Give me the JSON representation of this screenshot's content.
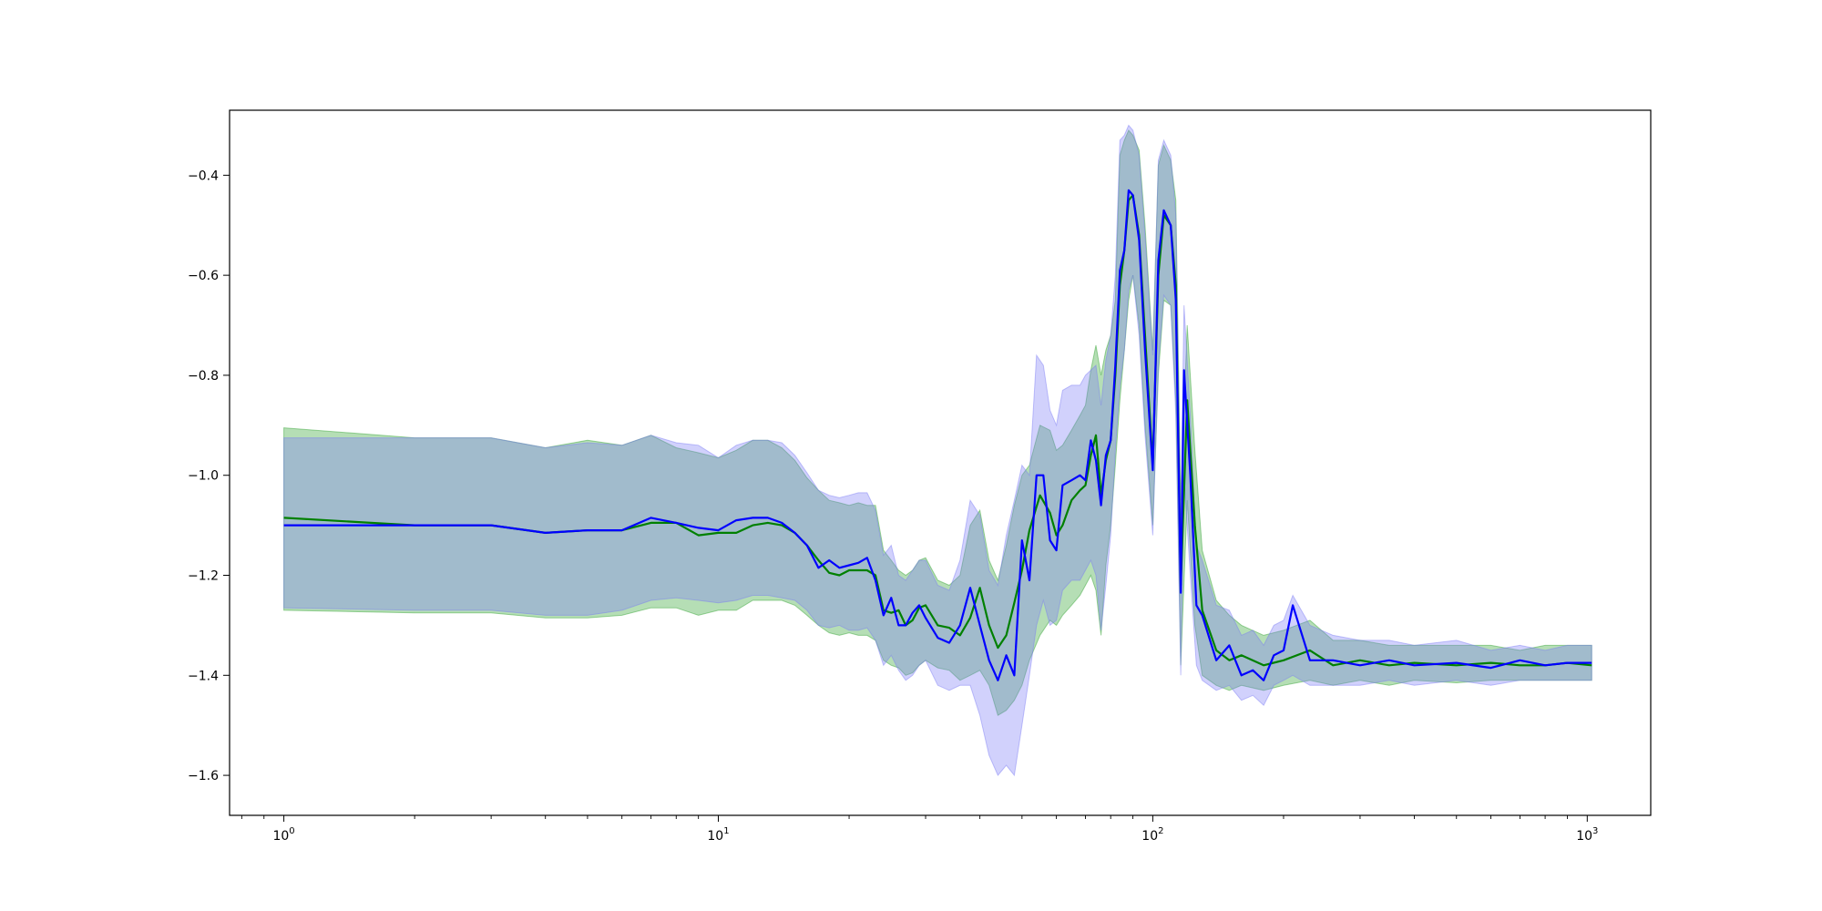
{
  "chart_data": {
    "type": "line",
    "title": "",
    "xlabel": "",
    "ylabel": "",
    "xscale": "log",
    "xlim": [
      0.75,
      1400
    ],
    "ylim": [
      -1.68,
      -0.27
    ],
    "grid": false,
    "legend": "none",
    "x_ticks": [
      {
        "value": 1,
        "base": "10",
        "exp": "0"
      },
      {
        "value": 10,
        "base": "10",
        "exp": "1"
      },
      {
        "value": 100,
        "base": "10",
        "exp": "2"
      },
      {
        "value": 1000,
        "base": "10",
        "exp": "3"
      }
    ],
    "y_ticks": [
      {
        "value": -1.6,
        "label": "−1.6"
      },
      {
        "value": -1.4,
        "label": "−1.4"
      },
      {
        "value": -1.2,
        "label": "−1.2"
      },
      {
        "value": -1.0,
        "label": "−1.0"
      },
      {
        "value": -0.8,
        "label": "−0.8"
      },
      {
        "value": -0.6,
        "label": "−0.6"
      },
      {
        "value": -0.4,
        "label": "−0.4"
      }
    ],
    "series": [
      {
        "color": "#008000",
        "band_color": "#2ca02c",
        "points": [
          [
            1,
            -1.085,
            -0.905,
            -1.27
          ],
          [
            2,
            -1.1,
            -0.925,
            -1.275
          ],
          [
            3,
            -1.1,
            -0.925,
            -1.275
          ],
          [
            4,
            -1.115,
            -0.945,
            -1.285
          ],
          [
            5,
            -1.11,
            -0.93,
            -1.285
          ],
          [
            6,
            -1.11,
            -0.94,
            -1.28
          ],
          [
            7,
            -1.095,
            -0.92,
            -1.265
          ],
          [
            8,
            -1.095,
            -0.945,
            -1.265
          ],
          [
            9,
            -1.12,
            -0.955,
            -1.28
          ],
          [
            10,
            -1.115,
            -0.965,
            -1.27
          ],
          [
            11,
            -1.115,
            -0.95,
            -1.27
          ],
          [
            12,
            -1.1,
            -0.93,
            -1.25
          ],
          [
            13,
            -1.095,
            -0.93,
            -1.25
          ],
          [
            14,
            -1.1,
            -0.945,
            -1.25
          ],
          [
            15,
            -1.115,
            -0.97,
            -1.26
          ],
          [
            16,
            -1.14,
            -1.005,
            -1.28
          ],
          [
            17,
            -1.17,
            -1.03,
            -1.3
          ],
          [
            18,
            -1.195,
            -1.05,
            -1.315
          ],
          [
            19,
            -1.2,
            -1.055,
            -1.32
          ],
          [
            20,
            -1.19,
            -1.06,
            -1.315
          ],
          [
            21,
            -1.19,
            -1.055,
            -1.32
          ],
          [
            22,
            -1.19,
            -1.06,
            -1.32
          ],
          [
            23,
            -1.2,
            -1.06,
            -1.33
          ],
          [
            24,
            -1.27,
            -1.15,
            -1.37
          ],
          [
            25,
            -1.275,
            -1.17,
            -1.38
          ],
          [
            26,
            -1.27,
            -1.19,
            -1.385
          ],
          [
            27,
            -1.3,
            -1.2,
            -1.4
          ],
          [
            28,
            -1.29,
            -1.19,
            -1.395
          ],
          [
            29,
            -1.265,
            -1.17,
            -1.38
          ],
          [
            30,
            -1.26,
            -1.165,
            -1.37
          ],
          [
            32,
            -1.3,
            -1.21,
            -1.385
          ],
          [
            34,
            -1.305,
            -1.22,
            -1.39
          ],
          [
            36,
            -1.32,
            -1.2,
            -1.41
          ],
          [
            38,
            -1.285,
            -1.1,
            -1.4
          ],
          [
            40,
            -1.225,
            -1.07,
            -1.39
          ],
          [
            42,
            -1.3,
            -1.17,
            -1.42
          ],
          [
            44,
            -1.345,
            -1.21,
            -1.48
          ],
          [
            46,
            -1.32,
            -1.14,
            -1.47
          ],
          [
            48,
            -1.255,
            -1.06,
            -1.45
          ],
          [
            50,
            -1.19,
            -1.0,
            -1.42
          ],
          [
            52,
            -1.11,
            -0.98,
            -1.37
          ],
          [
            55,
            -1.04,
            -0.9,
            -1.32
          ],
          [
            58,
            -1.075,
            -0.91,
            -1.29
          ],
          [
            60,
            -1.12,
            -0.95,
            -1.3
          ],
          [
            62,
            -1.1,
            -0.94,
            -1.28
          ],
          [
            65,
            -1.05,
            -0.91,
            -1.26
          ],
          [
            68,
            -1.03,
            -0.88,
            -1.24
          ],
          [
            70,
            -1.02,
            -0.86,
            -1.22
          ],
          [
            72,
            -0.96,
            -0.79,
            -1.2
          ],
          [
            74,
            -0.92,
            -0.74,
            -1.23
          ],
          [
            76,
            -1.04,
            -0.8,
            -1.32
          ],
          [
            78,
            -0.97,
            -0.75,
            -1.18
          ],
          [
            80,
            -0.93,
            -0.72,
            -1.1
          ],
          [
            82,
            -0.8,
            -0.65,
            -0.98
          ],
          [
            84,
            -0.62,
            -0.36,
            -0.85
          ],
          [
            86,
            -0.55,
            -0.33,
            -0.75
          ],
          [
            88,
            -0.45,
            -0.31,
            -0.65
          ],
          [
            90,
            -0.44,
            -0.32,
            -0.6
          ],
          [
            93,
            -0.52,
            -0.35,
            -0.7
          ],
          [
            96,
            -0.72,
            -0.5,
            -0.9
          ],
          [
            100,
            -0.98,
            -0.75,
            -1.1
          ],
          [
            103,
            -0.6,
            -0.38,
            -0.8
          ],
          [
            106,
            -0.48,
            -0.34,
            -0.65
          ],
          [
            110,
            -0.5,
            -0.37,
            -0.66
          ],
          [
            113,
            -0.62,
            -0.45,
            -0.85
          ],
          [
            116,
            -1.22,
            -1.05,
            -1.38
          ],
          [
            120,
            -0.85,
            -0.7,
            -1.05
          ],
          [
            125,
            -1.1,
            -0.95,
            -1.3
          ],
          [
            130,
            -1.27,
            -1.15,
            -1.4
          ],
          [
            140,
            -1.35,
            -1.25,
            -1.42
          ],
          [
            150,
            -1.37,
            -1.28,
            -1.43
          ],
          [
            160,
            -1.36,
            -1.3,
            -1.42
          ],
          [
            180,
            -1.38,
            -1.32,
            -1.43
          ],
          [
            200,
            -1.37,
            -1.31,
            -1.42
          ],
          [
            230,
            -1.35,
            -1.29,
            -1.41
          ],
          [
            260,
            -1.38,
            -1.33,
            -1.42
          ],
          [
            300,
            -1.37,
            -1.33,
            -1.41
          ],
          [
            350,
            -1.38,
            -1.34,
            -1.42
          ],
          [
            400,
            -1.375,
            -1.34,
            -1.41
          ],
          [
            500,
            -1.38,
            -1.34,
            -1.415
          ],
          [
            600,
            -1.375,
            -1.34,
            -1.41
          ],
          [
            700,
            -1.38,
            -1.35,
            -1.41
          ],
          [
            800,
            -1.38,
            -1.34,
            -1.41
          ],
          [
            900,
            -1.375,
            -1.34,
            -1.41
          ],
          [
            1024,
            -1.38,
            -1.34,
            -1.41
          ]
        ]
      },
      {
        "color": "#0000ff",
        "band_color": "#7b7bf5",
        "points": [
          [
            1,
            -1.1,
            -0.925,
            -1.265
          ],
          [
            2,
            -1.1,
            -0.925,
            -1.27
          ],
          [
            3,
            -1.1,
            -0.925,
            -1.27
          ],
          [
            4,
            -1.115,
            -0.945,
            -1.28
          ],
          [
            5,
            -1.11,
            -0.935,
            -1.28
          ],
          [
            6,
            -1.11,
            -0.94,
            -1.27
          ],
          [
            7,
            -1.085,
            -0.92,
            -1.25
          ],
          [
            8,
            -1.095,
            -0.935,
            -1.245
          ],
          [
            9,
            -1.105,
            -0.94,
            -1.25
          ],
          [
            10,
            -1.11,
            -0.965,
            -1.255
          ],
          [
            11,
            -1.09,
            -0.94,
            -1.25
          ],
          [
            12,
            -1.085,
            -0.93,
            -1.24
          ],
          [
            13,
            -1.085,
            -0.93,
            -1.24
          ],
          [
            14,
            -1.095,
            -0.935,
            -1.245
          ],
          [
            15,
            -1.115,
            -0.96,
            -1.25
          ],
          [
            16,
            -1.14,
            -0.995,
            -1.27
          ],
          [
            17,
            -1.185,
            -1.03,
            -1.3
          ],
          [
            18,
            -1.17,
            -1.04,
            -1.305
          ],
          [
            19,
            -1.185,
            -1.045,
            -1.3
          ],
          [
            20,
            -1.18,
            -1.04,
            -1.31
          ],
          [
            21,
            -1.175,
            -1.035,
            -1.31
          ],
          [
            22,
            -1.165,
            -1.035,
            -1.305
          ],
          [
            23,
            -1.21,
            -1.07,
            -1.33
          ],
          [
            24,
            -1.28,
            -1.16,
            -1.38
          ],
          [
            25,
            -1.245,
            -1.14,
            -1.36
          ],
          [
            26,
            -1.3,
            -1.2,
            -1.39
          ],
          [
            27,
            -1.3,
            -1.21,
            -1.41
          ],
          [
            28,
            -1.275,
            -1.19,
            -1.4
          ],
          [
            29,
            -1.26,
            -1.17,
            -1.38
          ],
          [
            30,
            -1.285,
            -1.17,
            -1.37
          ],
          [
            32,
            -1.325,
            -1.22,
            -1.42
          ],
          [
            34,
            -1.335,
            -1.23,
            -1.43
          ],
          [
            36,
            -1.3,
            -1.17,
            -1.42
          ],
          [
            38,
            -1.225,
            -1.05,
            -1.42
          ],
          [
            40,
            -1.3,
            -1.08,
            -1.48
          ],
          [
            42,
            -1.37,
            -1.19,
            -1.56
          ],
          [
            44,
            -1.41,
            -1.22,
            -1.6
          ],
          [
            46,
            -1.36,
            -1.12,
            -1.58
          ],
          [
            48,
            -1.4,
            -1.05,
            -1.6
          ],
          [
            50,
            -1.13,
            -0.98,
            -1.5
          ],
          [
            52,
            -1.21,
            -1.0,
            -1.4
          ],
          [
            54,
            -1.0,
            -0.76,
            -1.3
          ],
          [
            56,
            -1.0,
            -0.78,
            -1.25
          ],
          [
            58,
            -1.13,
            -0.87,
            -1.3
          ],
          [
            60,
            -1.15,
            -0.9,
            -1.29
          ],
          [
            62,
            -1.02,
            -0.83,
            -1.23
          ],
          [
            65,
            -1.01,
            -0.82,
            -1.21
          ],
          [
            68,
            -1.0,
            -0.82,
            -1.21
          ],
          [
            70,
            -1.01,
            -0.8,
            -1.19
          ],
          [
            72,
            -0.93,
            -0.79,
            -1.17
          ],
          [
            74,
            -0.97,
            -0.78,
            -1.2
          ],
          [
            76,
            -1.06,
            -0.86,
            -1.31
          ],
          [
            78,
            -0.96,
            -0.77,
            -1.22
          ],
          [
            80,
            -0.93,
            -0.72,
            -1.12
          ],
          [
            82,
            -0.78,
            -0.6,
            -0.95
          ],
          [
            84,
            -0.59,
            -0.33,
            -0.82
          ],
          [
            86,
            -0.55,
            -0.32,
            -0.75
          ],
          [
            88,
            -0.43,
            -0.3,
            -0.63
          ],
          [
            90,
            -0.44,
            -0.31,
            -0.6
          ],
          [
            93,
            -0.53,
            -0.36,
            -0.72
          ],
          [
            96,
            -0.75,
            -0.52,
            -0.92
          ],
          [
            100,
            -0.99,
            -0.76,
            -1.12
          ],
          [
            103,
            -0.57,
            -0.37,
            -0.78
          ],
          [
            106,
            -0.47,
            -0.33,
            -0.64
          ],
          [
            110,
            -0.5,
            -0.36,
            -0.66
          ],
          [
            113,
            -0.65,
            -0.48,
            -0.88
          ],
          [
            116,
            -1.235,
            -1.08,
            -1.4
          ],
          [
            118,
            -0.79,
            -0.66,
            -1.0
          ],
          [
            122,
            -1.0,
            -0.88,
            -1.2
          ],
          [
            126,
            -1.26,
            -1.14,
            -1.38
          ],
          [
            130,
            -1.28,
            -1.17,
            -1.41
          ],
          [
            140,
            -1.37,
            -1.26,
            -1.43
          ],
          [
            150,
            -1.34,
            -1.27,
            -1.42
          ],
          [
            160,
            -1.4,
            -1.32,
            -1.45
          ],
          [
            170,
            -1.39,
            -1.31,
            -1.44
          ],
          [
            180,
            -1.41,
            -1.34,
            -1.46
          ],
          [
            190,
            -1.36,
            -1.3,
            -1.42
          ],
          [
            200,
            -1.35,
            -1.29,
            -1.41
          ],
          [
            210,
            -1.26,
            -1.24,
            -1.4
          ],
          [
            230,
            -1.37,
            -1.3,
            -1.42
          ],
          [
            260,
            -1.37,
            -1.32,
            -1.42
          ],
          [
            300,
            -1.38,
            -1.33,
            -1.42
          ],
          [
            350,
            -1.37,
            -1.33,
            -1.41
          ],
          [
            400,
            -1.38,
            -1.34,
            -1.42
          ],
          [
            500,
            -1.375,
            -1.33,
            -1.41
          ],
          [
            600,
            -1.385,
            -1.35,
            -1.42
          ],
          [
            700,
            -1.37,
            -1.34,
            -1.41
          ],
          [
            800,
            -1.38,
            -1.35,
            -1.41
          ],
          [
            900,
            -1.375,
            -1.34,
            -1.41
          ],
          [
            1024,
            -1.375,
            -1.34,
            -1.41
          ]
        ]
      }
    ]
  }
}
